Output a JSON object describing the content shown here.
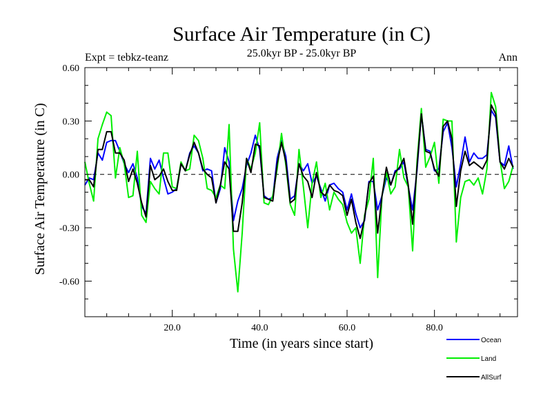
{
  "chart_data": {
    "type": "line",
    "title": "Surface Air Temperature (in C)",
    "subtitle": "25.0kyr BP - 25.0kyr BP",
    "left_annotation": "Expt = tebkz-teanz",
    "right_annotation": "Ann",
    "xlabel": "Time (in years since start)",
    "ylabel": "Surface Air Temperature (in C)",
    "xlim": [
      0,
      99
    ],
    "ylim": [
      -0.8,
      0.6
    ],
    "x_ticks": [
      20,
      40,
      60,
      80
    ],
    "x_tick_labels": [
      "20.0",
      "40.0",
      "60.0",
      "80.0"
    ],
    "y_ticks": [
      -0.6,
      -0.3,
      0.0,
      0.3,
      0.6
    ],
    "y_tick_labels": [
      "-0.60",
      "-0.30",
      "0.00",
      "0.30",
      "0.60"
    ],
    "zero_line": true,
    "legend_position": "bottom-right",
    "series": [
      {
        "name": "Ocean",
        "color": "#0000ff",
        "values": [
          -0.06,
          -0.02,
          -0.03,
          0.12,
          0.08,
          0.18,
          0.19,
          0.19,
          0.13,
          0.06,
          0.01,
          0.06,
          -0.02,
          -0.18,
          -0.22,
          0.09,
          0.03,
          0.08,
          -0.02,
          -0.11,
          -0.1,
          -0.08,
          0.06,
          0.02,
          0.12,
          0.16,
          0.12,
          0.02,
          0.03,
          0.02,
          -0.16,
          -0.08,
          0.15,
          0.07,
          -0.26,
          -0.15,
          -0.08,
          0.05,
          0.12,
          0.22,
          0.14,
          -0.12,
          -0.14,
          -0.13,
          0.09,
          0.19,
          0.1,
          -0.14,
          -0.12,
          0.06,
          0.02,
          0.06,
          -0.05,
          -0.01,
          -0.08,
          -0.15,
          -0.06,
          -0.05,
          -0.08,
          -0.1,
          -0.2,
          -0.11,
          -0.22,
          -0.3,
          -0.26,
          -0.04,
          -0.04,
          -0.2,
          -0.12,
          -0.02,
          -0.06,
          0.02,
          0.03,
          0.07,
          -0.07,
          -0.2,
          0.02,
          0.34,
          0.14,
          0.13,
          0.02,
          0.03,
          0.24,
          0.29,
          0.15,
          -0.07,
          0.06,
          0.21,
          0.07,
          0.12,
          0.09,
          0.09,
          0.11,
          0.36,
          0.32,
          0.07,
          0.05,
          0.16,
          0.03
        ]
      },
      {
        "name": "Land",
        "color": "#00ee00",
        "values": [
          0.07,
          -0.05,
          -0.15,
          0.2,
          0.28,
          0.35,
          0.33,
          -0.02,
          0.15,
          0.06,
          -0.13,
          -0.12,
          0.13,
          -0.23,
          -0.27,
          -0.04,
          -0.08,
          -0.11,
          0.12,
          0.12,
          -0.07,
          -0.08,
          0.07,
          0.02,
          0.03,
          0.22,
          0.19,
          0.09,
          -0.08,
          -0.09,
          -0.13,
          -0.06,
          -0.08,
          0.28,
          -0.42,
          -0.66,
          -0.33,
          0.09,
          0.03,
          0.12,
          0.29,
          -0.16,
          -0.17,
          -0.12,
          0.03,
          0.23,
          0.05,
          -0.17,
          -0.23,
          0.14,
          -0.07,
          -0.3,
          -0.05,
          0.07,
          -0.13,
          -0.05,
          -0.2,
          -0.1,
          -0.14,
          -0.17,
          -0.27,
          -0.33,
          -0.3,
          -0.5,
          -0.23,
          -0.14,
          0.09,
          -0.58,
          -0.12,
          0.01,
          -0.11,
          -0.07,
          0.14,
          -0.02,
          -0.07,
          -0.43,
          0.07,
          0.37,
          0.04,
          0.1,
          0.18,
          -0.05,
          0.31,
          0.3,
          0.3,
          -0.38,
          -0.13,
          -0.04,
          -0.03,
          -0.06,
          -0.02,
          -0.11,
          0.03,
          0.46,
          0.38,
          0.08,
          -0.08,
          -0.04,
          0.05
        ]
      },
      {
        "name": "AllSurf",
        "color": "#000000",
        "values": [
          -0.03,
          -0.03,
          -0.07,
          0.14,
          0.14,
          0.24,
          0.24,
          0.12,
          0.12,
          0.08,
          -0.04,
          0.03,
          -0.05,
          -0.16,
          -0.24,
          0.05,
          -0.03,
          -0.01,
          0.03,
          -0.04,
          -0.09,
          -0.09,
          0.06,
          0.02,
          0.11,
          0.18,
          0.12,
          0.03,
          0.0,
          -0.02,
          -0.16,
          -0.06,
          0.07,
          0.03,
          -0.32,
          -0.32,
          -0.16,
          0.09,
          0.01,
          0.17,
          0.16,
          -0.13,
          -0.14,
          -0.15,
          0.06,
          0.18,
          0.07,
          -0.16,
          -0.14,
          0.06,
          -0.01,
          -0.04,
          -0.13,
          0.01,
          -0.1,
          -0.12,
          -0.06,
          -0.09,
          -0.1,
          -0.12,
          -0.23,
          -0.14,
          -0.27,
          -0.36,
          -0.25,
          -0.05,
          -0.01,
          -0.33,
          -0.12,
          0.04,
          -0.06,
          0.01,
          0.04,
          0.09,
          -0.06,
          -0.28,
          0.04,
          0.34,
          0.13,
          0.12,
          0.03,
          -0.01,
          0.27,
          0.3,
          0.2,
          -0.18,
          0.02,
          0.13,
          0.05,
          0.07,
          0.05,
          0.03,
          0.08,
          0.39,
          0.34,
          0.07,
          0.03,
          0.09,
          0.04
        ]
      }
    ]
  }
}
